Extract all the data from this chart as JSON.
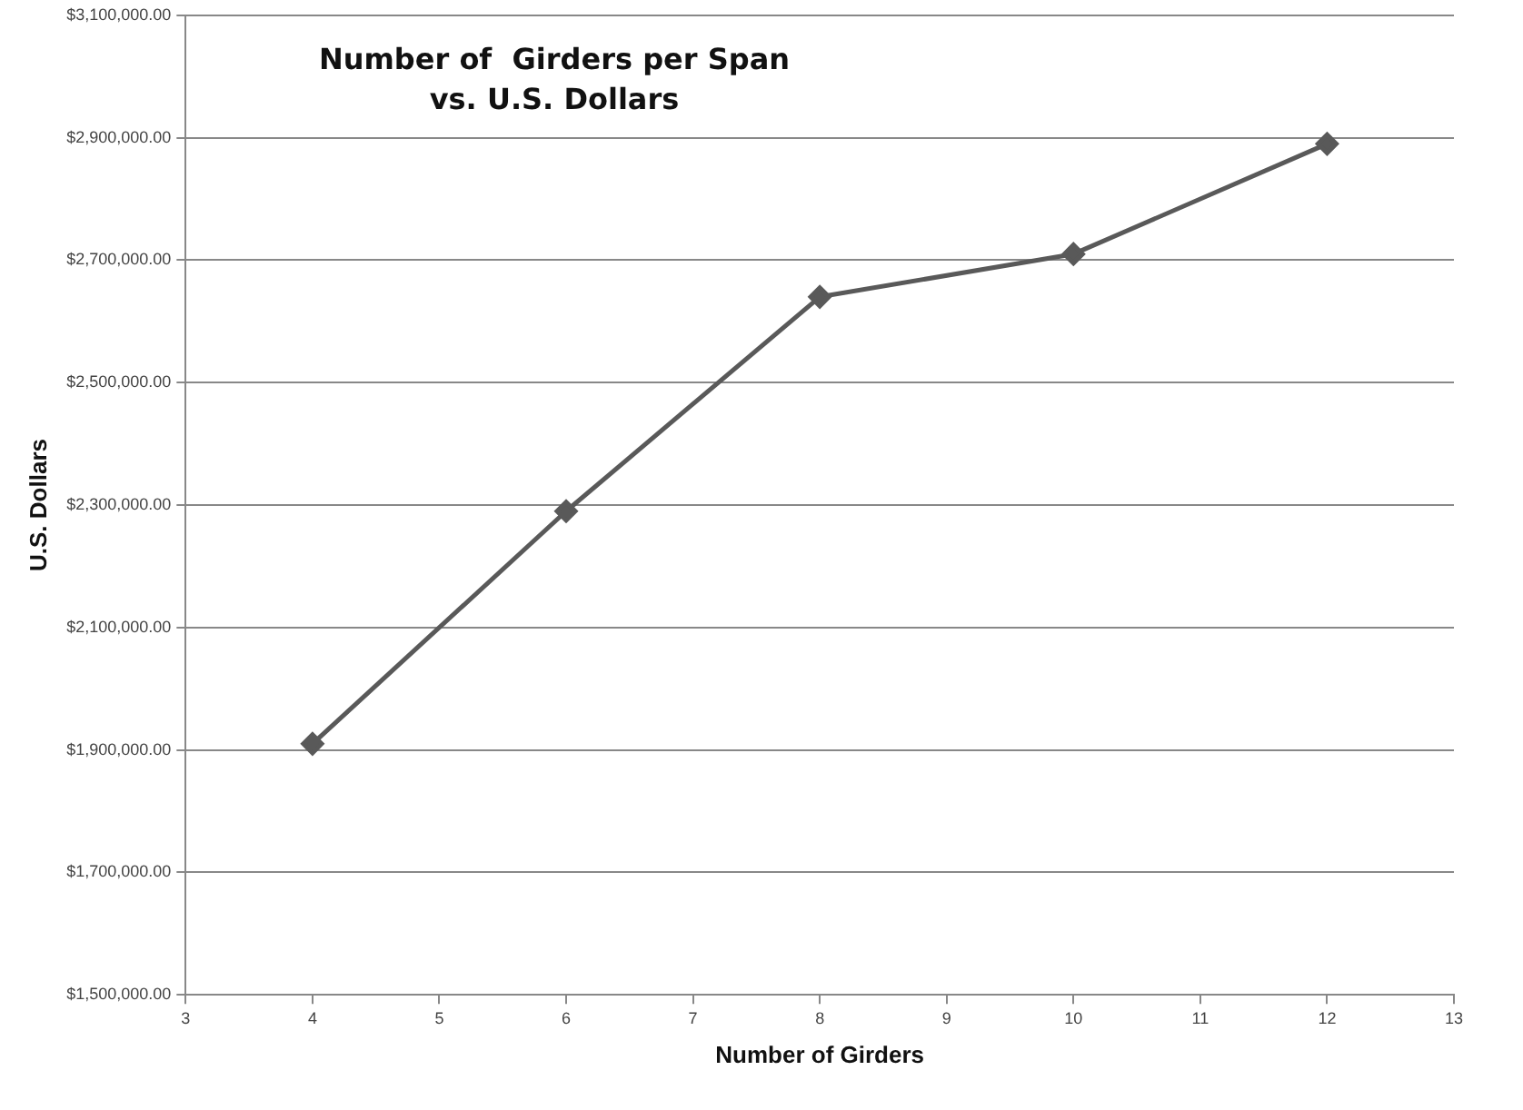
{
  "chart_data": {
    "type": "line",
    "title": "Number of  Girders per Span\nvs. U.S. Dollars",
    "xlabel": "Number of Girders",
    "ylabel": "U.S. Dollars",
    "x": [
      4,
      6,
      8,
      10,
      12
    ],
    "series": [
      {
        "color": "#595959",
        "values": [
          1910000,
          2290000,
          2640000,
          2710000,
          2890000
        ]
      }
    ],
    "xlim": [
      3,
      13
    ],
    "xticks": [
      3,
      4,
      5,
      6,
      7,
      8,
      9,
      10,
      11,
      12,
      13
    ],
    "ylim": [
      1500000,
      3100000
    ],
    "yticks": [
      {
        "value": 1500000,
        "label": "$1,500,000.00"
      },
      {
        "value": 1700000,
        "label": "$1,700,000.00"
      },
      {
        "value": 1900000,
        "label": "$1,900,000.00"
      },
      {
        "value": 2100000,
        "label": "$2,100,000.00"
      },
      {
        "value": 2300000,
        "label": "$2,300,000.00"
      },
      {
        "value": 2500000,
        "label": "$2,500,000.00"
      },
      {
        "value": 2700000,
        "label": "$2,700,000.00"
      },
      {
        "value": 2900000,
        "label": "$2,900,000.00"
      },
      {
        "value": 3100000,
        "label": "$3,100,000.00"
      }
    ],
    "grid": "y",
    "marker": "diamond",
    "line_style": "solid"
  }
}
